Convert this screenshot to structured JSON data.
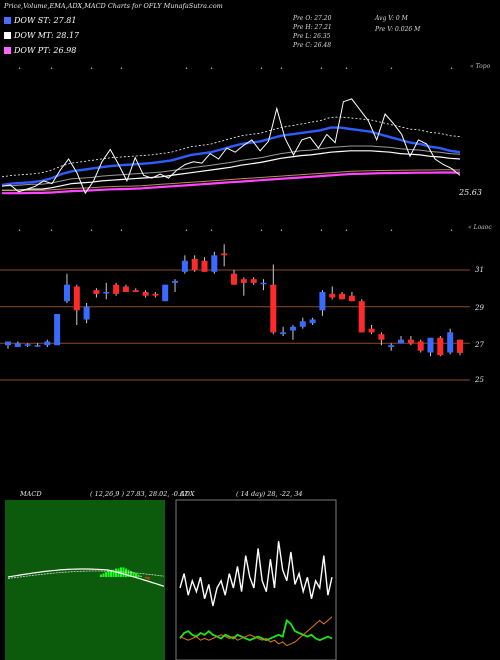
{
  "header": {
    "title": "Price,Volume,EMA,ADX,MACD Charts for OFLY MunafaSutra.com"
  },
  "legend": [
    {
      "label": "DOW ST: 27.81",
      "color": "#4f6bff"
    },
    {
      "label": "DOW MT: 28.17",
      "color": "#ffffff"
    },
    {
      "label": "DOW PT: 26.98",
      "color": "#ff66ff"
    }
  ],
  "ohlc": {
    "open": "Pre   O: 27.20",
    "high": "Pre   H: 27.21",
    "low": "Pre   L: 26.35",
    "close": "Pre   C: 26.48",
    "avg_vol": "Avg V: 0  M",
    "prev_vol": "Pre   V: 0.026  M"
  },
  "upper_panel": {
    "label": "« Topo",
    "last_value": "25.63"
  },
  "lower_panel": {
    "label": "« Loaoc",
    "yticks": [
      "31",
      "29",
      "27",
      "25"
    ]
  },
  "macd": {
    "label": "MACD",
    "params": "( 12,26,9 ) 27.83,  28.02,  -0.67"
  },
  "adx": {
    "label": "ADX",
    "params": "( 14  day) 28,  -22,  34"
  },
  "colors": {
    "ema_short": "#2f5cff",
    "ema_mid": "#ffffff",
    "ema_long": "#ff44ff",
    "up": "#3a6bff",
    "down": "#ff2a2a",
    "macd_bg": "#0c5a0c",
    "grid": "#8a4a2a"
  },
  "chart_data": {
    "type": "candlestick",
    "yticks": [
      31,
      29,
      27,
      25
    ],
    "candles": [
      {
        "o": 26.9,
        "h": 27.1,
        "l": 26.7,
        "c": 27.1
      },
      {
        "o": 26.8,
        "h": 27.1,
        "l": 26.8,
        "c": 27.0
      },
      {
        "o": 26.9,
        "h": 27.0,
        "l": 26.8,
        "c": 26.95
      },
      {
        "o": 26.85,
        "h": 27.0,
        "l": 26.8,
        "c": 26.9
      },
      {
        "o": 26.9,
        "h": 27.2,
        "l": 26.8,
        "c": 27.1
      },
      {
        "o": 26.9,
        "h": 28.6,
        "l": 26.9,
        "c": 28.6
      },
      {
        "o": 29.3,
        "h": 30.8,
        "l": 29.2,
        "c": 30.2
      },
      {
        "o": 30.1,
        "h": 30.2,
        "l": 28.0,
        "c": 28.8
      },
      {
        "o": 28.3,
        "h": 29.2,
        "l": 28.1,
        "c": 29.0
      },
      {
        "o": 29.9,
        "h": 30.0,
        "l": 29.5,
        "c": 29.7
      },
      {
        "o": 29.8,
        "h": 30.3,
        "l": 29.4,
        "c": 29.8
      },
      {
        "o": 30.2,
        "h": 30.3,
        "l": 29.6,
        "c": 29.7
      },
      {
        "o": 30.1,
        "h": 30.2,
        "l": 29.8,
        "c": 29.8
      },
      {
        "o": 29.9,
        "h": 30.0,
        "l": 29.8,
        "c": 29.8
      },
      {
        "o": 29.8,
        "h": 29.9,
        "l": 29.5,
        "c": 29.6
      },
      {
        "o": 29.7,
        "h": 29.8,
        "l": 29.5,
        "c": 29.6
      },
      {
        "o": 29.3,
        "h": 30.2,
        "l": 29.3,
        "c": 30.2
      },
      {
        "o": 30.3,
        "h": 30.5,
        "l": 29.8,
        "c": 30.4
      },
      {
        "o": 30.9,
        "h": 31.8,
        "l": 30.8,
        "c": 31.5
      },
      {
        "o": 31.6,
        "h": 31.8,
        "l": 30.9,
        "c": 31.0
      },
      {
        "o": 31.5,
        "h": 31.7,
        "l": 30.9,
        "c": 30.9
      },
      {
        "o": 30.9,
        "h": 32.0,
        "l": 30.8,
        "c": 31.8
      },
      {
        "o": 31.9,
        "h": 32.4,
        "l": 31.2,
        "c": 31.8
      },
      {
        "o": 30.8,
        "h": 31.0,
        "l": 30.2,
        "c": 30.2
      },
      {
        "o": 30.5,
        "h": 30.6,
        "l": 29.6,
        "c": 30.3
      },
      {
        "o": 30.5,
        "h": 30.6,
        "l": 30.2,
        "c": 30.3
      },
      {
        "o": 30.3,
        "h": 30.5,
        "l": 29.9,
        "c": 30.3
      },
      {
        "o": 30.2,
        "h": 31.3,
        "l": 27.5,
        "c": 27.6
      },
      {
        "o": 27.5,
        "h": 27.9,
        "l": 27.4,
        "c": 27.6
      },
      {
        "o": 27.7,
        "h": 28.0,
        "l": 27.2,
        "c": 27.9
      },
      {
        "o": 27.9,
        "h": 28.4,
        "l": 27.8,
        "c": 28.2
      },
      {
        "o": 28.1,
        "h": 28.4,
        "l": 28.0,
        "c": 28.3
      },
      {
        "o": 28.8,
        "h": 29.9,
        "l": 28.5,
        "c": 29.8
      },
      {
        "o": 29.7,
        "h": 30.1,
        "l": 29.4,
        "c": 29.5
      },
      {
        "o": 29.7,
        "h": 29.8,
        "l": 29.4,
        "c": 29.4
      },
      {
        "o": 29.6,
        "h": 29.8,
        "l": 29.3,
        "c": 29.3
      },
      {
        "o": 29.3,
        "h": 29.4,
        "l": 27.6,
        "c": 27.6
      },
      {
        "o": 27.8,
        "h": 28.0,
        "l": 27.5,
        "c": 27.6
      },
      {
        "o": 27.5,
        "h": 27.6,
        "l": 26.9,
        "c": 27.2
      },
      {
        "o": 26.8,
        "h": 27.0,
        "l": 26.6,
        "c": 26.9
      },
      {
        "o": 27.0,
        "h": 27.4,
        "l": 27.0,
        "c": 27.2
      },
      {
        "o": 27.2,
        "h": 27.4,
        "l": 26.9,
        "c": 27.0
      },
      {
        "o": 27.1,
        "h": 27.2,
        "l": 26.5,
        "c": 26.6
      },
      {
        "o": 26.5,
        "h": 27.3,
        "l": 26.3,
        "c": 27.3
      },
      {
        "o": 27.3,
        "h": 27.4,
        "l": 26.3,
        "c": 26.35
      },
      {
        "o": 26.5,
        "h": 27.8,
        "l": 26.4,
        "c": 27.6
      },
      {
        "o": 27.2,
        "h": 27.21,
        "l": 26.35,
        "c": 26.48
      }
    ],
    "ema_short": [
      24.9,
      25.0,
      25.05,
      25.1,
      25.2,
      25.4,
      25.7,
      25.9,
      26.0,
      26.1,
      26.2,
      26.3,
      26.35,
      26.4,
      26.45,
      26.5,
      26.6,
      26.7,
      26.9,
      27.1,
      27.2,
      27.3,
      27.5,
      27.7,
      27.9,
      28.0,
      28.1,
      28.3,
      28.5,
      28.6,
      28.7,
      28.8,
      28.9,
      29.1,
      29.1,
      29.0,
      28.9,
      28.8,
      28.6,
      28.4,
      28.2,
      28.0,
      27.9,
      27.7,
      27.6,
      27.4,
      27.3
    ],
    "ema_mid": [
      24.5,
      24.5,
      24.55,
      24.6,
      24.6,
      24.7,
      24.85,
      25.0,
      25.05,
      25.1,
      25.2,
      25.25,
      25.3,
      25.35,
      25.4,
      25.45,
      25.5,
      25.6,
      25.7,
      25.8,
      25.9,
      26.0,
      26.1,
      26.2,
      26.35,
      26.45,
      26.55,
      26.7,
      26.85,
      26.95,
      27.05,
      27.1,
      27.2,
      27.3,
      27.35,
      27.4,
      27.4,
      27.4,
      27.35,
      27.3,
      27.2,
      27.15,
      27.1,
      27.0,
      26.95,
      26.85,
      26.8
    ],
    "ema_long": [
      24.3,
      24.3,
      24.3,
      24.32,
      24.32,
      24.35,
      24.4,
      24.45,
      24.47,
      24.5,
      24.55,
      24.58,
      24.6,
      24.62,
      24.65,
      24.7,
      24.75,
      24.8,
      24.85,
      24.9,
      24.95,
      25.0,
      25.05,
      25.1,
      25.15,
      25.2,
      25.25,
      25.3,
      25.35,
      25.4,
      25.45,
      25.5,
      25.55,
      25.6,
      25.65,
      25.7,
      25.72,
      25.74,
      25.76,
      25.77,
      25.78,
      25.79,
      25.8,
      25.8,
      25.81,
      25.81,
      25.8
    ],
    "price_line": [
      24.8,
      24.9,
      24.4,
      24.6,
      24.8,
      25.2,
      25.0,
      26.0,
      26.8,
      25.8,
      24.3,
      25.2,
      26.6,
      27.5,
      26.4,
      25.2,
      26.9,
      25.6,
      25.4,
      25.7,
      25.4,
      26.0,
      26.4,
      26.6,
      26.5,
      27.2,
      26.8,
      27.6,
      27.3,
      27.8,
      28.2,
      27.4,
      28.1,
      30.5,
      28.3,
      27.1,
      28.2,
      28.4,
      27.6,
      28.6,
      28.0,
      31.0,
      31.2,
      30.4,
      29.6,
      28.2,
      30.1,
      29.4,
      28.6,
      27.0,
      28.2,
      27.9,
      26.8,
      26.4,
      26.1,
      25.6
    ],
    "adx_white": [
      40,
      48,
      36,
      44,
      38,
      46,
      34,
      42,
      30,
      40,
      44,
      36,
      48,
      40,
      52,
      38,
      58,
      46,
      40,
      62,
      44,
      38,
      56,
      40,
      66,
      50,
      44,
      60,
      42,
      48,
      38,
      46,
      34,
      44,
      40,
      58,
      36,
      46
    ],
    "adx_green": [
      12,
      15,
      16,
      14,
      13,
      15,
      14,
      16,
      14,
      13,
      12,
      14,
      13,
      12,
      14,
      13,
      12,
      11,
      12,
      13,
      12,
      11,
      12,
      13,
      14,
      13,
      22,
      20,
      16,
      15,
      14,
      13,
      14,
      12,
      11,
      12,
      13,
      12
    ],
    "adx_orange": [
      13,
      12,
      11,
      12,
      13,
      11,
      12,
      11,
      12,
      13,
      14,
      13,
      12,
      13,
      11,
      12,
      13,
      14,
      13,
      12,
      11,
      12,
      10,
      11,
      9,
      10,
      8,
      9,
      10,
      12,
      14,
      16,
      18,
      20,
      22,
      20,
      22,
      24
    ],
    "macd_bars": [
      2,
      3,
      4,
      5,
      6,
      6,
      7,
      7,
      8,
      8,
      7,
      6,
      5,
      4,
      3,
      2,
      1,
      0,
      -1,
      -2
    ]
  }
}
